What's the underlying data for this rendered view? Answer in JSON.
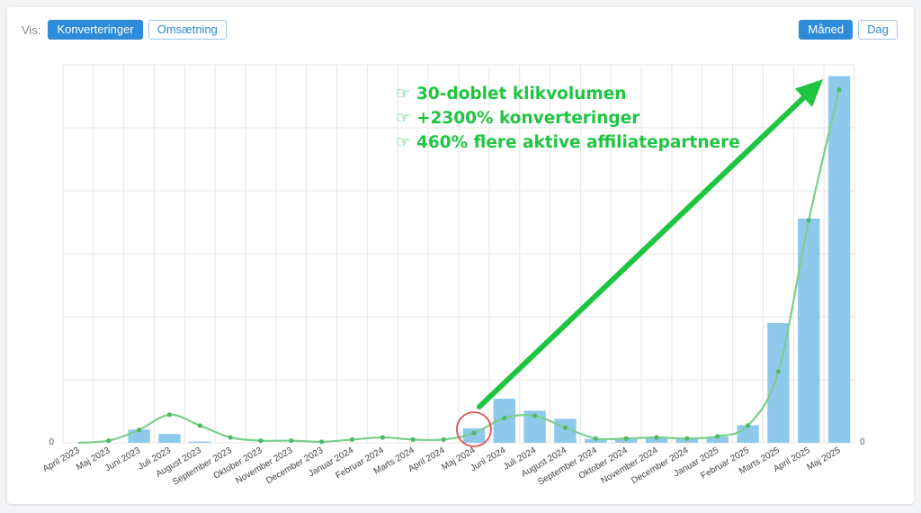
{
  "toolbar": {
    "vis_label": "Vis:",
    "metric_tabs": [
      "Konverteringer",
      "Omsætning"
    ],
    "metric_selected": "Konverteringer",
    "period_tabs": [
      "Måned",
      "Dag"
    ],
    "period_selected": "Måned"
  },
  "colors": {
    "bar": "#8ec9ec",
    "line": "#7bcf8c",
    "arrow": "#1ec540",
    "circle": "#e05555",
    "accent": "#2d8bd9"
  },
  "annotations": [
    "☞ 30-doblet klikvolumen",
    "☞ +2300% konverteringer",
    "☞ 460% flere aktive affiliatepartnere"
  ],
  "chart_data": {
    "type": "bar",
    "categories": [
      "April 2023",
      "Maj 2023",
      "Juni 2023",
      "Juli 2023",
      "August 2023",
      "September 2023",
      "Oktober 2023",
      "November 2023",
      "December 2023",
      "Januar 2024",
      "Februar 2024",
      "Marts 2024",
      "April 2024",
      "Maj 2024",
      "Juni 2024",
      "Juli 2024",
      "August 2024",
      "September 2024",
      "Oktober 2024",
      "November 2024",
      "December 2024",
      "Januar 2025",
      "Februar 2025",
      "Marts 2025",
      "April 2025",
      "Maj 2025"
    ],
    "series": [
      {
        "type": "bar",
        "values": [
          0,
          0,
          2.1,
          1.4,
          0.2,
          0,
          0,
          0,
          0,
          0,
          0,
          0,
          0,
          2.3,
          7.0,
          5.1,
          3.8,
          0.6,
          0.7,
          0.9,
          0.7,
          1.0,
          2.8,
          19.0,
          35.6,
          58.2
        ]
      },
      {
        "type": "line",
        "values": [
          0,
          0.2,
          1.2,
          2.6,
          1.6,
          0.5,
          0.2,
          0.2,
          0.1,
          0.3,
          0.5,
          0.3,
          0.3,
          0.9,
          2.3,
          2.5,
          1.4,
          0.4,
          0.4,
          0.5,
          0.4,
          0.6,
          1.6,
          6.6,
          20.6,
          32.7
        ]
      }
    ],
    "ylim": [
      0,
      60
    ],
    "y2lim": [
      0,
      35
    ],
    "y_tick_labels": [
      "0"
    ],
    "y2_tick_labels": [
      "0"
    ],
    "grid": true,
    "highlight_category": "Maj 2024"
  }
}
